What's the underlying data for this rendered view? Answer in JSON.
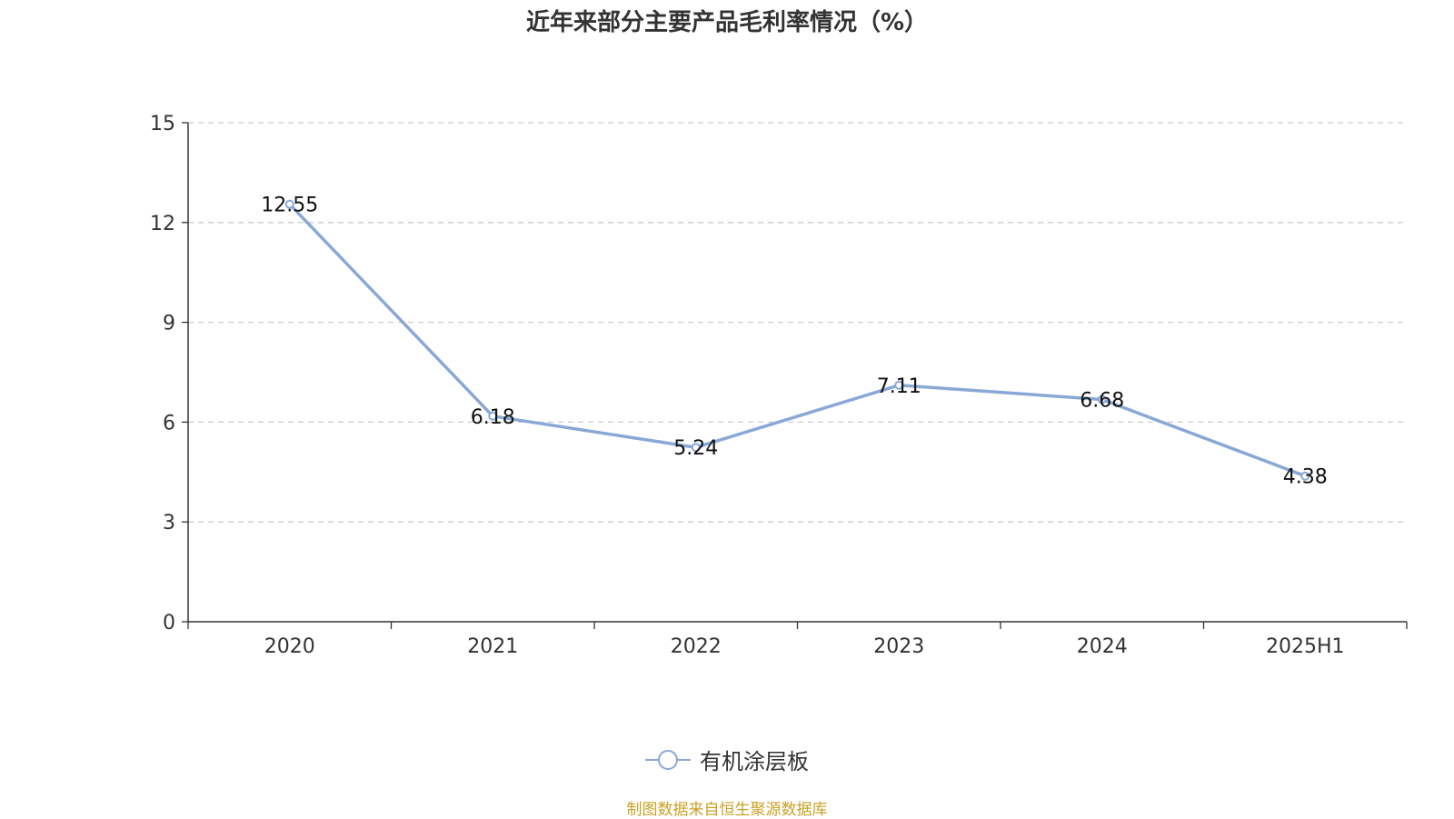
{
  "chart_data": {
    "type": "line",
    "title": "近年来部分主要产品毛利率情况（%）",
    "categories": [
      "2020",
      "2021",
      "2022",
      "2023",
      "2024",
      "2025H1"
    ],
    "series": [
      {
        "name": "有机涂层板",
        "values": [
          12.55,
          6.18,
          5.24,
          7.11,
          6.68,
          4.38
        ],
        "labels": [
          "12.55",
          "6.18",
          "5.24",
          "7.11",
          "6.68",
          "4.38"
        ],
        "color": "#8aa8d6"
      }
    ],
    "ylim": [
      0,
      15
    ],
    "yticks": [
      0,
      3,
      6,
      9,
      12,
      15
    ],
    "xlabel": "",
    "ylabel": "",
    "grid": "horizontal-dashed",
    "legend_position": "bottom-center"
  },
  "source": "制图数据来自恒生聚源数据库",
  "colors": {
    "series": "#8aa8d6",
    "grid": "#cccccc",
    "axis": "#333333",
    "source": "#c9a227"
  }
}
